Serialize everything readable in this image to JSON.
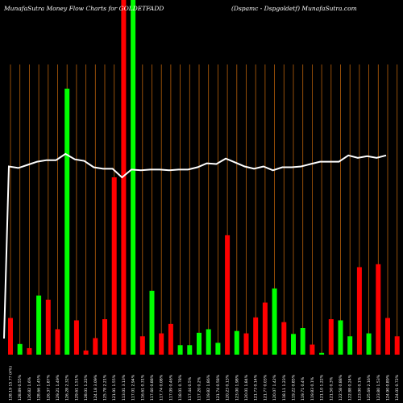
{
  "header": {
    "title_left": "MunafaSutra  Money Flow  Charts for GOLDETFADD",
    "title_right": "(Dspamc -  Dspgoldetf) MunafaSutra.com"
  },
  "colors": {
    "background": "#000000",
    "gridline": "#b8600a",
    "up_bar": "#00ff00",
    "down_bar": "#ff0000",
    "price_line": "#ffffff"
  },
  "chart_data": {
    "type": "bar",
    "title": "MunafaSutra  Money Flow  Charts for GOLDETFADD",
    "subtitle": "(Dspamc -  Dspgoldetf) MunafaSutra.com",
    "categories": [
      "128.19 15.77 (4%)",
      "128.89 0.55%",
      "126.82 1.6%",
      "128.66 1.45%",
      "126.37 1.87%",
      "129.21 1.49%",
      "126.28 2.32%",
      "129.61 1.51%",
      "128.01 1.22%",
      "124.18 3.09%",
      "125.78 2.21%",
      "121.91 1.55%",
      "113.01 3.13%",
      "117.01 2.94%",
      "116.61 0.31%",
      "117.60 0.88%",
      "117.74 0.08%",
      "117.09 0.46%",
      "118.01 0.78%",
      "117.44 0.5%",
      "117.20 0.2%",
      "119.82 1.86%",
      "121.74 0.58%",
      "120.23 0.13%",
      "123.00 1.98%",
      "120.01 1.84%",
      "121.73 0.14%",
      "121.77 0.03%",
      "120.07 1.42%",
      "118.11 1.23%",
      "119.22 0.85%",
      "119.71 0.4%",
      "119.83 0.1%",
      "121.10 1.22%",
      "121.50 0.3%",
      "122.58 0.88%",
      "122.88 0.24%",
      "123.00 0.1%",
      "125.69 2.16%",
      "123.80 1.53%",
      "124.90 0.89%",
      "124.01 0.72%",
      "125.06 1.12%"
    ],
    "colors": [
      "down",
      "up",
      "down",
      "up",
      "down",
      "down",
      "up",
      "down",
      "down",
      "down",
      "down",
      "down",
      "down",
      "up",
      "down",
      "up",
      "down",
      "down",
      "up",
      "up",
      "up",
      "up",
      "up",
      "down",
      "up",
      "down",
      "down",
      "down",
      "up",
      "down",
      "up",
      "up",
      "down",
      "up",
      "down",
      "up",
      "up",
      "down",
      "up",
      "down",
      "down",
      "down",
      "up"
    ],
    "values": [
      0.62,
      0.18,
      0.11,
      1.0,
      0.93,
      0.43,
      4.5,
      0.58,
      0.07,
      0.28,
      0.6,
      3.0,
      6.0,
      6.0,
      0.31,
      1.08,
      0.36,
      0.52,
      0.16,
      0.16,
      0.37,
      0.43,
      0.2,
      2.02,
      0.4,
      0.36,
      0.63,
      0.88,
      1.12,
      0.55,
      0.35,
      0.45,
      0.17,
      0.03,
      0.6,
      0.58,
      0.31,
      1.48,
      0.36,
      1.53,
      0.62,
      0.31,
      1.55
    ],
    "price": [
      122.9,
      122.7,
      123.1,
      123.5,
      123.7,
      123.7,
      124.5,
      123.8,
      123.6,
      122.8,
      122.6,
      122.6,
      121.5,
      122.5,
      122.4,
      122.5,
      122.5,
      122.4,
      122.5,
      122.5,
      122.8,
      123.3,
      123.2,
      123.9,
      123.4,
      122.9,
      122.6,
      122.9,
      122.4,
      122.8,
      122.8,
      122.9,
      123.2,
      123.5,
      123.5,
      123.5,
      124.3,
      124.0,
      124.2,
      124.0,
      124.3
    ],
    "price_first": 113.0,
    "ylim": [
      0,
      6.0
    ],
    "grid": true,
    "legend": "none"
  }
}
